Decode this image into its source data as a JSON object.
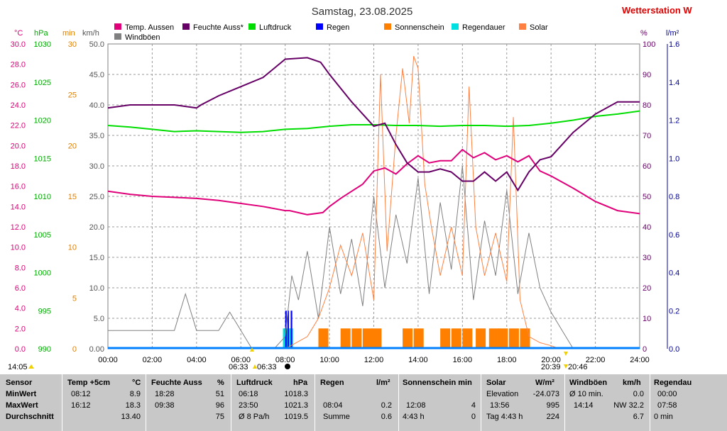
{
  "chart_data": {
    "type": "line",
    "title": "Samstag, 23.08.2025",
    "station": "Wetterstation W",
    "x_ticks": [
      "00:00",
      "02:00",
      "04:00",
      "06:00",
      "08:00",
      "10:00",
      "12:00",
      "14:00",
      "16:00",
      "18:00",
      "20:00",
      "22:00",
      "24:00"
    ],
    "axes": {
      "temp": {
        "unit": "°C",
        "color": "#e0007a",
        "ticks": [
          "0.0",
          "2.0",
          "4.0",
          "6.0",
          "8.0",
          "10.0",
          "12.0",
          "14.0",
          "16.0",
          "18.0",
          "20.0",
          "22.0",
          "24.0",
          "26.0",
          "28.0",
          "30.0"
        ],
        "ylim": [
          0,
          30
        ]
      },
      "pressure": {
        "unit": "hPa",
        "color": "#00cc00",
        "ticks": [
          "990",
          "995",
          "1000",
          "1005",
          "1010",
          "1015",
          "1020",
          "1025",
          "1030"
        ],
        "ylim": [
          990,
          1030
        ]
      },
      "minutes": {
        "unit": "min",
        "color": "#e08000",
        "ticks": [
          "0",
          "5",
          "10",
          "15",
          "20",
          "25",
          "30"
        ],
        "ylim": [
          0,
          30
        ]
      },
      "wind": {
        "unit": "km/h",
        "color": "#555555",
        "ticks": [
          "0.00",
          "5.0",
          "10.0",
          "15.0",
          "20.0",
          "25.0",
          "30.0",
          "35.0",
          "40.0",
          "45.0",
          "50.0"
        ],
        "ylim": [
          0,
          50
        ]
      },
      "humidity": {
        "unit": "%",
        "color": "#660066",
        "ticks": [
          "0",
          "10",
          "20",
          "30",
          "40",
          "50",
          "60",
          "70",
          "80",
          "90",
          "100"
        ],
        "ylim": [
          0,
          100
        ]
      },
      "rain": {
        "unit": "l/m²",
        "color": "#000099",
        "ticks": [
          "0.0",
          "0.2",
          "0.4",
          "0.6",
          "0.8",
          "1.0",
          "1.2",
          "1.4",
          "1.6"
        ],
        "ylim": [
          0,
          1.6
        ]
      }
    },
    "legend": [
      {
        "name": "Temp. Aussen",
        "color": "#e0007a"
      },
      {
        "name": "Feuchte Auss*",
        "color": "#660066"
      },
      {
        "name": "Luftdruck",
        "color": "#00dd00"
      },
      {
        "name": "Regen",
        "color": "#0000ff"
      },
      {
        "name": "Sonnenschein",
        "color": "#ff8000"
      },
      {
        "name": "Regendauer",
        "color": "#00e0e0"
      },
      {
        "name": "Solar",
        "color": "#ff8040"
      },
      {
        "name": "Windböen",
        "color": "#808080"
      }
    ],
    "series": [
      {
        "name": "Temp. Aussen",
        "axis": "temp",
        "color": "#e0007a",
        "x": [
          0,
          1,
          2,
          3,
          4,
          5,
          6,
          7,
          8,
          8.2,
          9,
          9.7,
          10,
          10.5,
          11,
          11.5,
          12,
          12.5,
          13,
          13.5,
          14,
          14.5,
          15,
          15.5,
          16,
          16.5,
          17,
          17.5,
          18,
          18.5,
          19,
          19.5,
          20,
          21,
          22,
          23,
          24
        ],
        "y": [
          15.5,
          15.2,
          15.0,
          14.9,
          14.8,
          14.6,
          14.3,
          14.0,
          13.6,
          13.6,
          13.2,
          13.4,
          14.0,
          14.8,
          15.5,
          16.2,
          17.5,
          17.8,
          17.2,
          18.2,
          19.0,
          18.3,
          18.5,
          18.5,
          19.6,
          18.8,
          19.3,
          18.6,
          19.0,
          18.4,
          19.0,
          17.5,
          17.0,
          15.8,
          14.5,
          13.6,
          13.3
        ]
      },
      {
        "name": "Feuchte Auss*",
        "axis": "humidity",
        "color": "#660066",
        "x": [
          0,
          1,
          2,
          3,
          4,
          4.2,
          5,
          6,
          7,
          8,
          9,
          9.6,
          10,
          11,
          12,
          12.5,
          13,
          13.5,
          14,
          14.5,
          15,
          15.5,
          16,
          16.5,
          17,
          17.5,
          18,
          18.5,
          19,
          19.5,
          20,
          21,
          22,
          23,
          24
        ],
        "y": [
          79,
          80,
          80,
          80,
          79,
          80,
          83,
          86,
          89,
          95,
          95.5,
          94,
          90,
          81,
          73,
          74,
          67,
          61,
          58,
          58,
          59,
          58,
          55,
          55,
          58,
          55,
          58,
          52,
          58,
          62,
          63,
          71,
          77,
          81,
          81
        ]
      },
      {
        "name": "Luftdruck",
        "axis": "pressure",
        "color": "#00dd00",
        "x": [
          0,
          1,
          2,
          3,
          4,
          5,
          6,
          7,
          8,
          9,
          10,
          11,
          12,
          13,
          14,
          15,
          16,
          17,
          18,
          19,
          20,
          21,
          22,
          23,
          24
        ],
        "y": [
          1019.3,
          1019.1,
          1018.8,
          1018.5,
          1018.6,
          1018.5,
          1018.4,
          1018.5,
          1018.8,
          1018.9,
          1019.2,
          1019.4,
          1019.4,
          1019.3,
          1019.3,
          1019.2,
          1019.3,
          1019.3,
          1019.2,
          1019.3,
          1019.6,
          1020.0,
          1020.5,
          1020.8,
          1021.2
        ]
      },
      {
        "name": "Solar",
        "axis": "wind",
        "color": "#ff8040",
        "x": [
          0,
          8,
          8.5,
          9,
          9.5,
          10,
          10.5,
          11,
          11.5,
          12,
          12.3,
          12.6,
          13,
          13.3,
          13.6,
          13.8,
          14,
          14.3,
          14.6,
          15,
          15.5,
          16,
          16.3,
          16.6,
          17,
          17.5,
          18,
          18.3,
          18.6,
          19,
          19.5,
          20,
          20.4,
          20.8,
          24
        ],
        "y": [
          0,
          0,
          1,
          2,
          5,
          10,
          17,
          12,
          19,
          8,
          45,
          16,
          35,
          46,
          37,
          48,
          46,
          27,
          20,
          12,
          20,
          12,
          43,
          20,
          12,
          19,
          11,
          38,
          8,
          2,
          1,
          0.5,
          0,
          0,
          0
        ]
      },
      {
        "name": "Windböen",
        "axis": "wind",
        "color": "#808080",
        "x": [
          0,
          1,
          2,
          3,
          3.5,
          4,
          5,
          5.5,
          6,
          6.5,
          7,
          7.5,
          8,
          8.3,
          8.6,
          9,
          9.5,
          10,
          10.5,
          11,
          11.5,
          12,
          12.5,
          13,
          13.5,
          14,
          14.5,
          15,
          15.5,
          16,
          16.5,
          17,
          17.5,
          18,
          18.5,
          19,
          19.5,
          20,
          20.5,
          21,
          22,
          23,
          24
        ],
        "y": [
          3,
          3,
          3,
          3,
          9,
          3,
          3,
          6,
          3,
          0,
          0,
          0,
          2,
          12,
          8,
          16,
          5,
          20,
          9,
          18,
          7,
          25,
          10,
          22,
          14,
          28,
          9,
          24,
          13,
          30,
          8,
          21,
          12,
          26,
          9,
          19,
          10,
          6,
          3,
          0,
          0,
          0,
          0
        ]
      }
    ],
    "sunshine_bars": {
      "name": "Sonnenschein",
      "axis": "minutes",
      "color": "#ff8000",
      "x": [
        9.5,
        10.5,
        11.0,
        11.5,
        11.9,
        13.3,
        13.8,
        15.0,
        15.5,
        16.0,
        16.6,
        17.2,
        17.6,
        18.1,
        18.6
      ],
      "y": [
        2,
        2,
        2,
        2,
        2,
        2,
        2,
        2,
        2,
        2,
        2,
        2,
        2,
        2,
        2
      ]
    },
    "rain_bars": {
      "name": "Regen",
      "axis": "rain",
      "color": "#0000ff",
      "x": [
        8.0,
        8.1,
        8.25
      ],
      "y": [
        0.2,
        0.2,
        0.2
      ]
    },
    "rain_duration_bars": {
      "name": "Regendauer",
      "axis": "minutes",
      "color": "#00e0e0",
      "x": [
        7.9
      ],
      "y": [
        2
      ]
    },
    "markers": {
      "left_time": "14:05",
      "sunrise": "06:33",
      "sunrise_ext": "06:33",
      "sunset": "20:39",
      "sunset_ext": "20:46"
    }
  },
  "stats": {
    "headers": [
      {
        "label": "Sensor"
      },
      {
        "label": "Temp +5cm",
        "unit": "°C"
      },
      {
        "label": "Feuchte Auss",
        "unit": "%"
      },
      {
        "label": "Luftdruck",
        "unit": "hPa"
      },
      {
        "label": "Regen",
        "unit": "l/m²"
      },
      {
        "label": "Sonnenschein min"
      },
      {
        "label": "Solar",
        "unit": "W/m²"
      },
      {
        "label": "Windböen",
        "unit": "km/h"
      },
      {
        "label": "Regendau"
      }
    ],
    "rows": [
      {
        "sensor": "MinWert",
        "c1t": "08:12",
        "c1v": "8.9",
        "c2t": "18:28",
        "c2v": "51",
        "c3t": "06:18",
        "c3v": "1018.3",
        "c4t": "",
        "c4v": "",
        "c5t": "",
        "c5v": "",
        "c6t": "Elevation",
        "c6v": "-24.073",
        "c7t": "Ø 10 min.",
        "c7v": "0.0",
        "c8t": "00:00"
      },
      {
        "sensor": "MaxWert",
        "c1t": "16:12",
        "c1v": "18.3",
        "c2t": "09:38",
        "c2v": "96",
        "c3t": "23:50",
        "c3v": "1021.3",
        "c4t": "08:04",
        "c4v": "0.2",
        "c5t": "12:08",
        "c5v": "4",
        "c6t": "13:56",
        "c6v": "995",
        "c7t": "14:14",
        "c7v": "NW 32.2",
        "c8t": "07:58"
      },
      {
        "sensor": "Durchschnitt",
        "c1t": "",
        "c1v": "13.40",
        "c2t": "",
        "c2v": "75",
        "c3t": "Ø 8 Pa/h",
        "c3v": "1019.5",
        "c4t": "Summe",
        "c4v": "0.6",
        "c5t": "4:43 h",
        "c5v": "0",
        "c6t": "Tag 4:43 h",
        "c6v": "224",
        "c7t": "",
        "c7v": "6.7",
        "c8t": "0 min"
      }
    ]
  }
}
